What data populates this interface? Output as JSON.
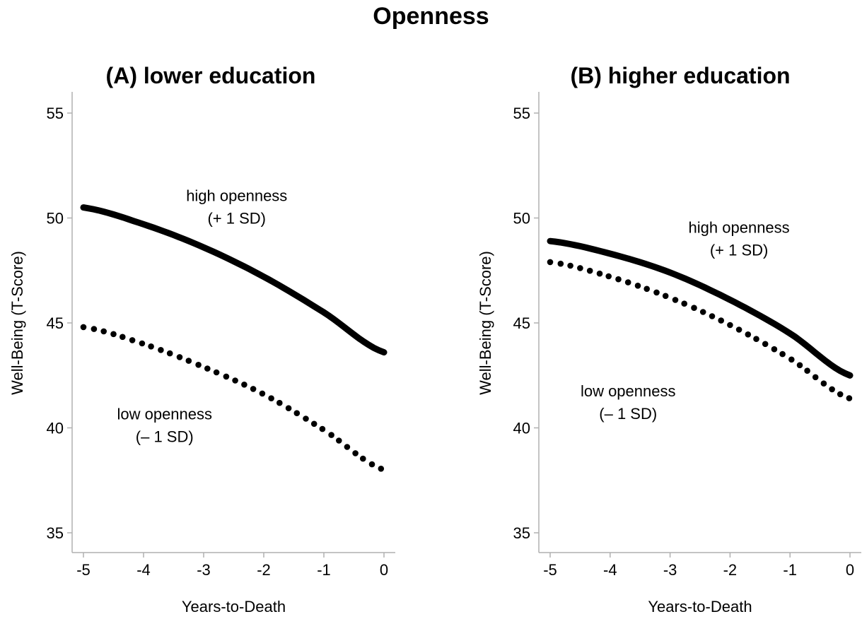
{
  "figure_title": "Openness",
  "chart_data": [
    {
      "type": "line",
      "title": "(A) lower education",
      "xlabel": "Years-to-Death",
      "ylabel": "Well-Being (T-Score)",
      "xlim": [
        -5,
        0
      ],
      "ylim": [
        34,
        56
      ],
      "xticks": [
        "-5",
        "-4",
        "-3",
        "-2",
        "-1",
        "0"
      ],
      "yticks": [
        "35",
        "40",
        "45",
        "50",
        "55"
      ],
      "x": [
        -5,
        -4,
        -3,
        -2,
        -1,
        0
      ],
      "series": [
        {
          "style": "solid",
          "values": [
            50.5,
            49.7,
            48.6,
            47.2,
            45.5,
            43.6
          ]
        },
        {
          "style": "dotted",
          "values": [
            44.8,
            44.0,
            42.9,
            41.6,
            39.9,
            38.0
          ]
        }
      ],
      "annotations": [
        {
          "lines": [
            "high openness",
            "(+ 1 SD)"
          ],
          "x": -2.45,
          "y": 50.8
        },
        {
          "lines": [
            "low openness",
            "(– 1 SD)"
          ],
          "x": -3.65,
          "y": 40.4
        }
      ]
    },
    {
      "type": "line",
      "title": "(B) higher education",
      "xlabel": "Years-to-Death",
      "ylabel": "Well-Being (T-Score)",
      "xlim": [
        -5,
        0
      ],
      "ylim": [
        34,
        56
      ],
      "xticks": [
        "-5",
        "-4",
        "-3",
        "-2",
        "-1",
        "0"
      ],
      "yticks": [
        "35",
        "40",
        "45",
        "50",
        "55"
      ],
      "x": [
        -5,
        -4,
        -3,
        -2,
        -1,
        0
      ],
      "series": [
        {
          "style": "solid",
          "values": [
            48.9,
            48.3,
            47.4,
            46.1,
            44.5,
            42.5
          ]
        },
        {
          "style": "dotted",
          "values": [
            47.9,
            47.2,
            46.2,
            44.9,
            43.3,
            41.4
          ]
        }
      ],
      "annotations": [
        {
          "lines": [
            "high openness",
            "(+ 1 SD)"
          ],
          "x": -1.85,
          "y": 49.3
        },
        {
          "lines": [
            "low openness",
            "(– 1 SD)"
          ],
          "x": -3.7,
          "y": 41.5
        }
      ]
    }
  ]
}
